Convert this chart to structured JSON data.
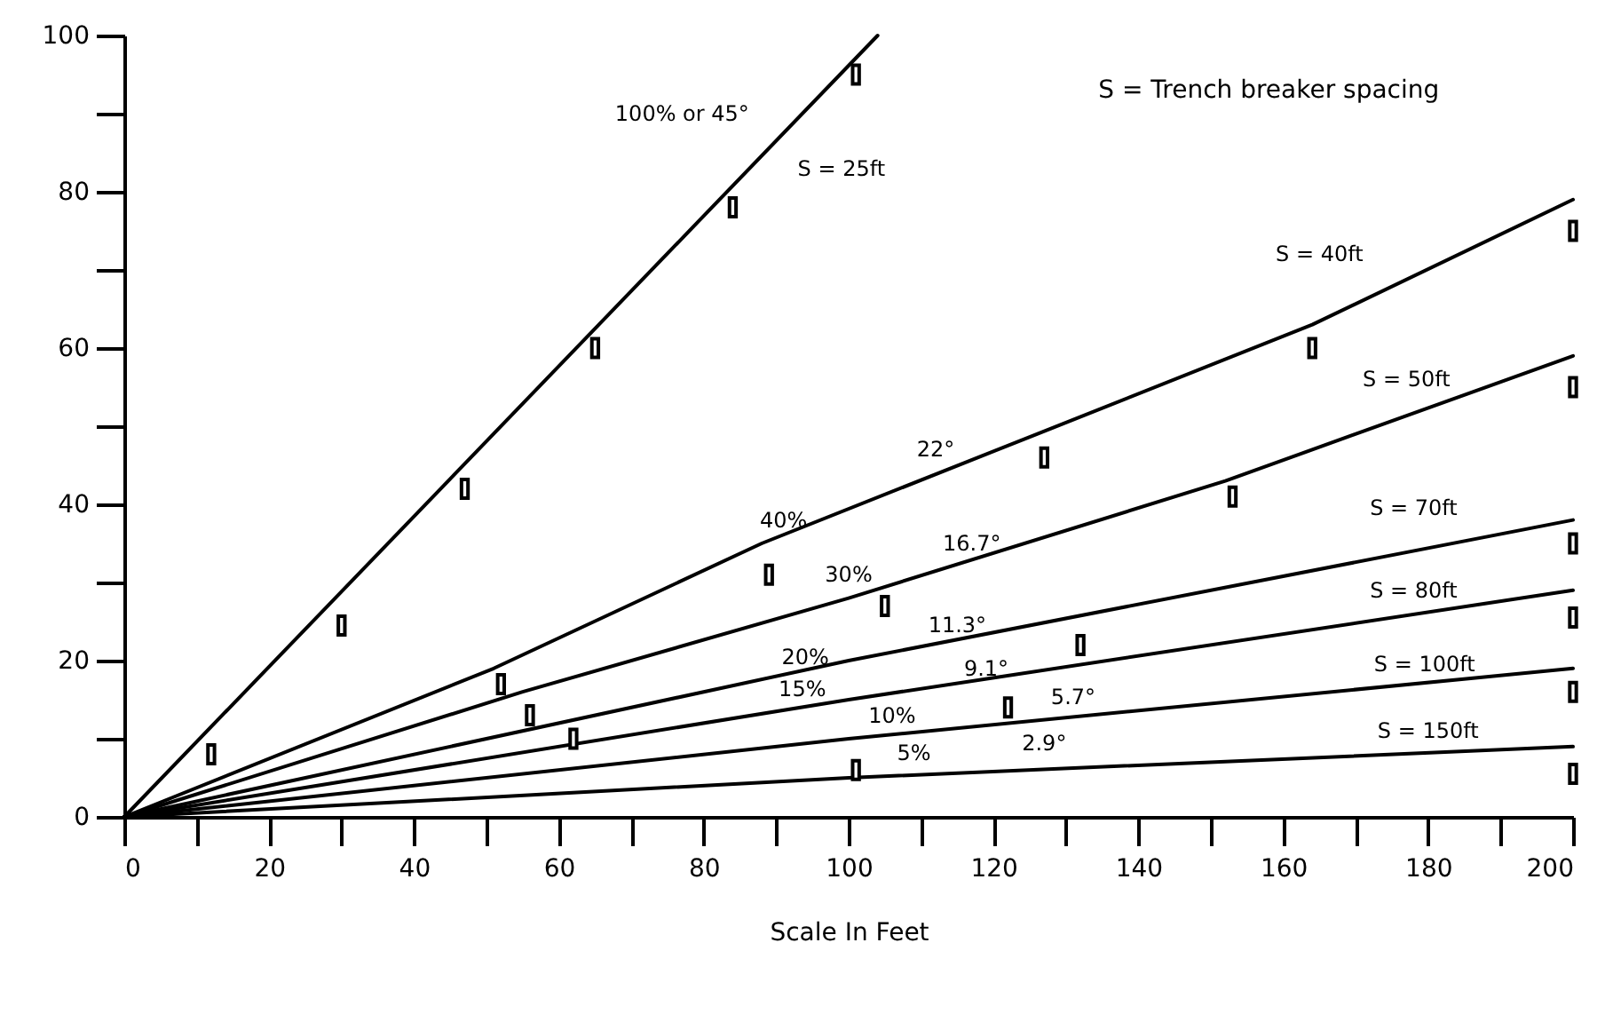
{
  "chart_data": {
    "type": "line",
    "xlabel": "Scale In Feet",
    "xlim": [
      0,
      200
    ],
    "ylim": [
      0,
      100
    ],
    "xticks": [
      0,
      {
        "value": 10,
        "label": null
      },
      20,
      {
        "value": 30,
        "label": null
      },
      40,
      {
        "value": 50,
        "label": null
      },
      60,
      {
        "value": 70,
        "label": null
      },
      80,
      {
        "value": 90,
        "label": null
      },
      100,
      {
        "value": 110,
        "label": null
      },
      120,
      {
        "value": 130,
        "label": null
      },
      140,
      {
        "value": 150,
        "label": null
      },
      160,
      {
        "value": 170,
        "label": null
      },
      180,
      {
        "value": 190,
        "label": null
      },
      200
    ],
    "yticks": [
      0,
      {
        "value": 10,
        "label": null
      },
      20,
      {
        "value": 30,
        "label": null
      },
      40,
      {
        "value": 50,
        "label": null
      },
      60,
      {
        "value": 70,
        "label": null
      },
      80,
      {
        "value": 90,
        "label": null
      },
      100
    ],
    "grid": false,
    "marker": "none",
    "line_style": "solid",
    "series": [
      {
        "color": "#000000",
        "x": [
          0,
          104
        ],
        "values": [
          0,
          100
        ]
      },
      {
        "color": "#000000",
        "x": [
          0,
          51,
          88,
          126,
          164,
          200
        ],
        "values": [
          0,
          19,
          35,
          49,
          63,
          79
        ]
      },
      {
        "color": "#000000",
        "x": [
          0,
          55,
          100,
          152,
          200
        ],
        "values": [
          0,
          16,
          28,
          43,
          59
        ]
      },
      {
        "color": "#000000",
        "x": [
          0,
          100,
          200
        ],
        "values": [
          0,
          20,
          38
        ]
      },
      {
        "color": "#000000",
        "x": [
          0,
          100,
          200
        ],
        "values": [
          0,
          15,
          29
        ]
      },
      {
        "color": "#000000",
        "x": [
          0,
          100,
          200
        ],
        "values": [
          0,
          10,
          19
        ]
      },
      {
        "color": "#000000",
        "x": [
          0,
          100,
          200
        ],
        "values": [
          0,
          5,
          9
        ]
      },
      {
        "type": "scatter",
        "marker": "square",
        "color": "#000000",
        "x": [
          12,
          30,
          47,
          65,
          84,
          101,
          52,
          89,
          127,
          164,
          200,
          56,
          105,
          153,
          200,
          62,
          132,
          200,
          122,
          200,
          101,
          200,
          200
        ],
        "values": [
          8,
          24.5,
          42,
          60,
          78,
          95,
          17,
          31,
          46,
          60,
          75,
          13,
          27,
          41,
          55,
          10,
          22,
          35,
          14,
          25.5,
          6,
          16,
          5.5
        ]
      }
    ],
    "annotations": [
      "S = Trench breaker spacing",
      "100% or 45°",
      "S = 25ft",
      "S = 40ft",
      "22°",
      "S = 50ft",
      "40%",
      "16.7°",
      "30%",
      "11.3°",
      "S = 70ft",
      "S = 80ft",
      "S = 100ft",
      "S = 150ft",
      "20%",
      "9.1°",
      "15%",
      "5.7°",
      "10%",
      "5%",
      "2.9°"
    ]
  }
}
